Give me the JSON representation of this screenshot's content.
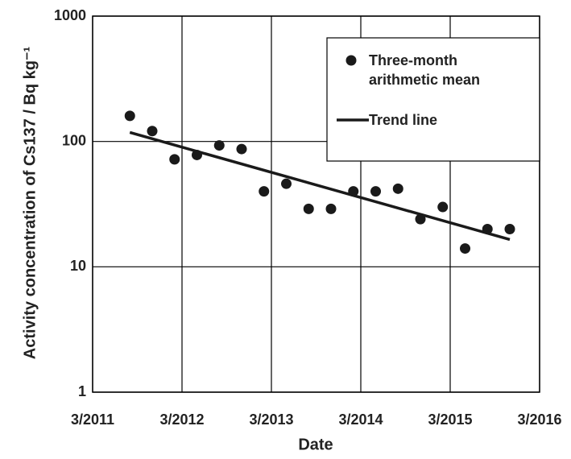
{
  "chart_data": {
    "type": "scatter",
    "x_label": "Date",
    "y_label": "Activity concentration of Cs137 / Bq kg⁻¹",
    "xlim": [
      "2011-03",
      "2016-03"
    ],
    "xticks": [
      {
        "value": "2011-03",
        "label": "3/2011"
      },
      {
        "value": "2012-03",
        "label": "3/2012"
      },
      {
        "value": "2013-03",
        "label": "3/2013"
      },
      {
        "value": "2014-03",
        "label": "3/2014"
      },
      {
        "value": "2015-03",
        "label": "3/2015"
      },
      {
        "value": "2016-03",
        "label": "3/2016"
      }
    ],
    "ylim": [
      1,
      1000
    ],
    "yticks": [
      1,
      10,
      100,
      1000
    ],
    "log_scale": true,
    "grid": true,
    "legend": "top-right",
    "series": [
      {
        "name": "Three-month arithmetic mean",
        "type": "scatter",
        "color": "#1a1a1a",
        "x": [
          "2011-08",
          "2011-11",
          "2012-02",
          "2012-05",
          "2012-08",
          "2012-11",
          "2013-02",
          "2013-05",
          "2013-08",
          "2013-11",
          "2014-02",
          "2014-05",
          "2014-08",
          "2014-11",
          "2015-02",
          "2015-05",
          "2015-08",
          "2015-11"
        ],
        "values": [
          160,
          121,
          72,
          78,
          93,
          87,
          40,
          46,
          29,
          29,
          40,
          40,
          42,
          24,
          30,
          14,
          20,
          20
        ]
      },
      {
        "name": "Trend line",
        "type": "line",
        "color": "#1a1a1a",
        "x": [
          "2011-08",
          "2015-11"
        ],
        "values": [
          118,
          16.5
        ]
      }
    ]
  }
}
